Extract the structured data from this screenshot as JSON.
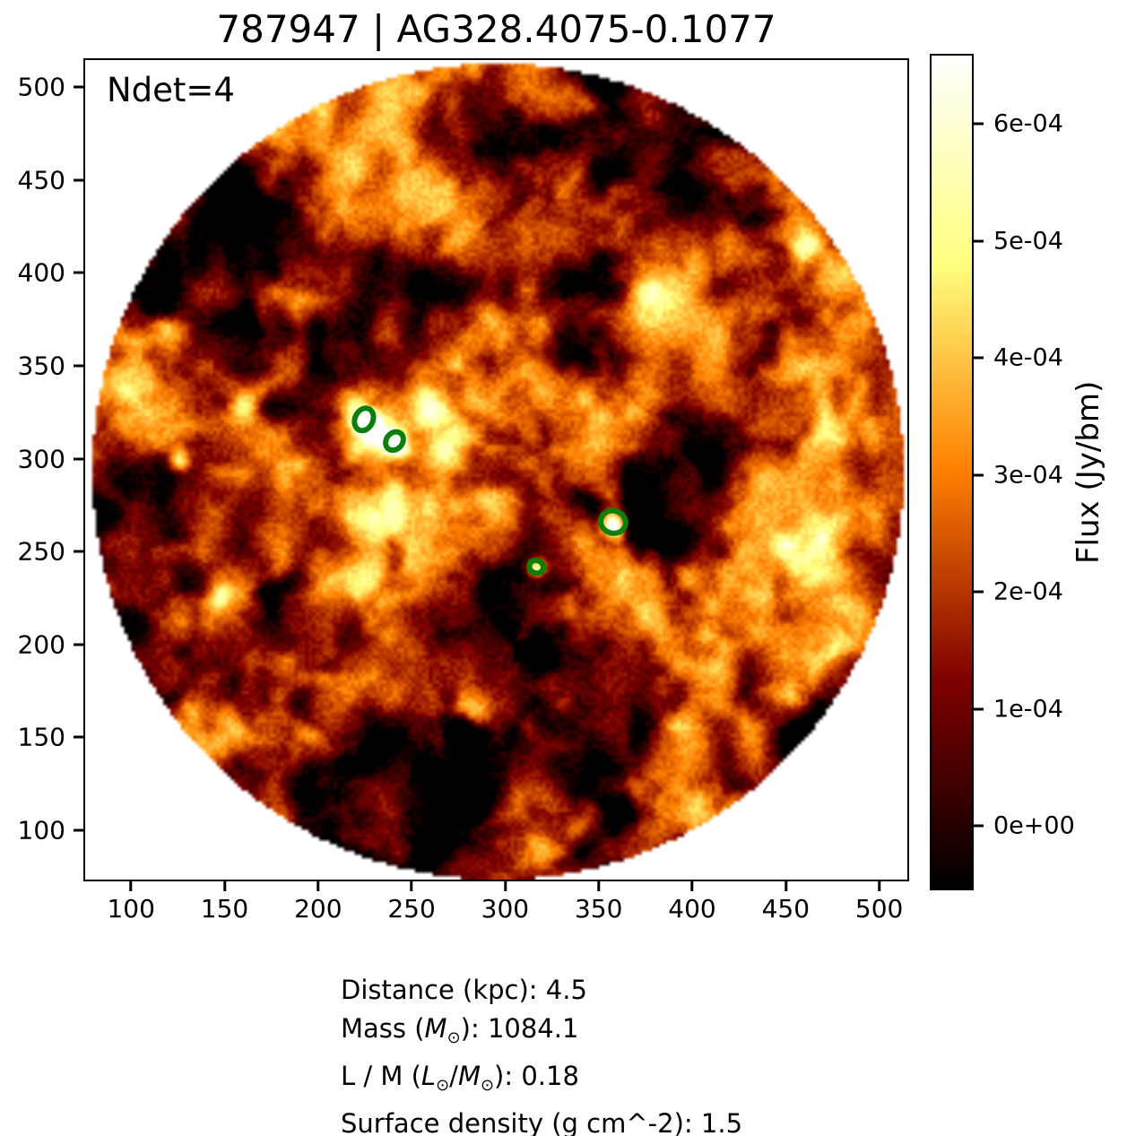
{
  "chart_data": {
    "type": "heatmap",
    "title": "787947 | AG328.4075-0.1077",
    "annotation": "Ndet=4",
    "colormap": "afmhot",
    "background_outside_fov": "#ffffff",
    "x_range": [
      74.5,
      516.0
    ],
    "y_range": [
      72.5,
      515.6
    ],
    "x_ticks": [
      {
        "label": "100",
        "value": 100
      },
      {
        "label": "150",
        "value": 150
      },
      {
        "label": "200",
        "value": 200
      },
      {
        "label": "250",
        "value": 250
      },
      {
        "label": "300",
        "value": 300
      },
      {
        "label": "350",
        "value": 350
      },
      {
        "label": "400",
        "value": 400
      },
      {
        "label": "450",
        "value": 450
      },
      {
        "label": "500",
        "value": 500
      }
    ],
    "y_ticks": [
      {
        "label": "500",
        "value": 500
      },
      {
        "label": "450",
        "value": 450
      },
      {
        "label": "400",
        "value": 400
      },
      {
        "label": "350",
        "value": 350
      },
      {
        "label": "300",
        "value": 300
      },
      {
        "label": "250",
        "value": 250
      },
      {
        "label": "200",
        "value": 200
      },
      {
        "label": "150",
        "value": 150
      },
      {
        "label": "100",
        "value": 100
      }
    ],
    "colorbar": {
      "label": "Flux (Jy/bm)",
      "min": -5.5e-05,
      "max": 0.00066,
      "ticks": [
        {
          "label": "6e-04",
          "value": 0.0006
        },
        {
          "label": "5e-04",
          "value": 0.0005
        },
        {
          "label": "4e-04",
          "value": 0.0004
        },
        {
          "label": "3e-04",
          "value": 0.0003
        },
        {
          "label": "2e-04",
          "value": 0.0002
        },
        {
          "label": "1e-04",
          "value": 0.0001
        },
        {
          "label": "0e+00",
          "value": 0.0
        }
      ]
    },
    "fov": {
      "center_x": 295.2,
      "center_y": 294.0,
      "radius": 220.8
    },
    "detections": [
      {
        "x": 224.5,
        "y": 321.0,
        "rx": 6.3,
        "ry": 7.8,
        "angle": 25
      },
      {
        "x": 241.0,
        "y": 309.5,
        "rx": 5.8,
        "ry": 6.8,
        "angle": 40
      },
      {
        "x": 357.8,
        "y": 266.0,
        "rx": 8.2,
        "ry": 7.4,
        "angle": 15
      },
      {
        "x": 316.8,
        "y": 242.0,
        "rx": 5.2,
        "ry": 4.8,
        "angle": 20
      }
    ],
    "detection_color": "#0a800a"
  },
  "info_lines": [
    {
      "segments": [
        {
          "t": "Distance (kpc): 4.5"
        }
      ]
    },
    {
      "segments": [
        {
          "t": "Mass ("
        },
        {
          "t": "M",
          "s": "it"
        },
        {
          "t": "⊙",
          "s": "sub"
        },
        {
          "t": "): 1084.1"
        }
      ]
    },
    {
      "segments": [
        {
          "t": "L / M ("
        },
        {
          "t": "L",
          "s": "it"
        },
        {
          "t": "⊙",
          "s": "sub"
        },
        {
          "t": "/"
        },
        {
          "t": "M",
          "s": "it"
        },
        {
          "t": "⊙",
          "s": "sub"
        },
        {
          "t": "): 0.18"
        }
      ]
    },
    {
      "segments": [
        {
          "t": "Surface density (g cm^-2): 1.5"
        }
      ]
    }
  ]
}
